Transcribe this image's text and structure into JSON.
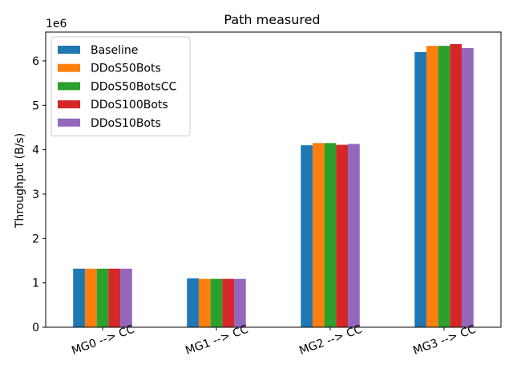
{
  "chart_data": {
    "type": "bar",
    "title": "Path measured",
    "xlabel": "",
    "ylabel": "Throughput (B/s)",
    "y_offset_label": "1e6",
    "ylim": [
      0,
      6.65
    ],
    "yticks": [
      0,
      1,
      2,
      3,
      4,
      5,
      6
    ],
    "ytick_labels": [
      "0",
      "1",
      "2",
      "3",
      "4",
      "5",
      "6"
    ],
    "y_unit_note": "values in units of 1e6 B/s",
    "categories": [
      "MG0 --> CC",
      "MG1 --> CC",
      "MG2 --> CC",
      "MG3 --> CC"
    ],
    "series": [
      {
        "name": "Baseline",
        "color": "#1f77b4",
        "values": [
          1.32,
          1.1,
          4.1,
          6.2
        ]
      },
      {
        "name": "DDoS50Bots",
        "color": "#ff7f0e",
        "values": [
          1.32,
          1.09,
          4.15,
          6.34
        ]
      },
      {
        "name": "DDoS50BotsCC",
        "color": "#2ca02c",
        "values": [
          1.32,
          1.09,
          4.15,
          6.34
        ]
      },
      {
        "name": "DDoS100Bots",
        "color": "#d62728",
        "values": [
          1.32,
          1.09,
          4.11,
          6.38
        ]
      },
      {
        "name": "DDoS10Bots",
        "color": "#9467bd",
        "values": [
          1.32,
          1.09,
          4.13,
          6.29
        ]
      }
    ],
    "legend_position": "upper-left",
    "grid": false
  }
}
